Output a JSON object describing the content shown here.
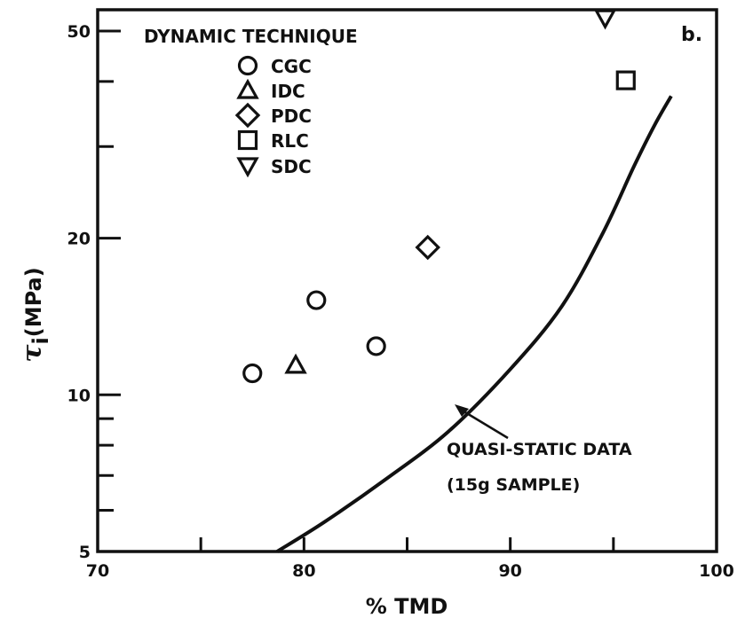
{
  "chart_data": {
    "type": "scatter",
    "panel_label": "b.",
    "xlabel": "% TMD",
    "ylabel_symbol": "τ",
    "ylabel_subscript": "i",
    "ylabel_unit": "(MPa)",
    "xlim": [
      70,
      100
    ],
    "ylim": [
      5,
      55
    ],
    "yscale": "log",
    "x_ticks": [
      70,
      75,
      80,
      85,
      90,
      95,
      100
    ],
    "x_tick_labels": [
      "70",
      "",
      "80",
      "",
      "90",
      "",
      "100"
    ],
    "y_ticks": [
      5,
      6,
      7,
      8,
      9,
      10,
      20,
      30,
      40,
      50
    ],
    "y_tick_labels": [
      "5",
      "",
      "",
      "",
      "",
      "10",
      "20",
      "",
      "",
      "50"
    ],
    "grid": false,
    "legend_title": "DYNAMIC TECHNIQUE",
    "legend_position": "top-left",
    "series": [
      {
        "name": "CGC",
        "marker": "circle",
        "points": [
          [
            77.5,
            11.0
          ],
          [
            80.6,
            15.2
          ],
          [
            83.5,
            12.4
          ]
        ]
      },
      {
        "name": "IDC",
        "marker": "triangle-up",
        "points": [
          [
            79.6,
            11.4
          ]
        ]
      },
      {
        "name": "PDC",
        "marker": "diamond",
        "points": [
          [
            86.0,
            19.2
          ]
        ]
      },
      {
        "name": "RLC",
        "marker": "square",
        "points": [
          [
            95.6,
            40.2
          ]
        ]
      },
      {
        "name": "SDC",
        "marker": "triangle-down",
        "points": [
          [
            94.6,
            53.0
          ]
        ]
      }
    ],
    "curve": {
      "points": [
        [
          78.7,
          5.0
        ],
        [
          81.0,
          5.7
        ],
        [
          84.0,
          6.9
        ],
        [
          87.0,
          8.5
        ],
        [
          90.0,
          11.2
        ],
        [
          92.5,
          14.8
        ],
        [
          94.5,
          20.5
        ],
        [
          96.0,
          27.5
        ],
        [
          97.0,
          33.0
        ],
        [
          97.8,
          37.5
        ]
      ],
      "annotation_lines": [
        "QUASI-STATIC DATA",
        "(15g SAMPLE)"
      ]
    }
  }
}
